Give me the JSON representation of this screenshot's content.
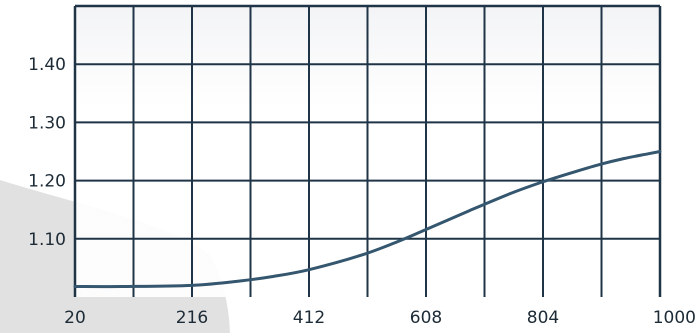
{
  "chart_data": {
    "type": "line",
    "title": "",
    "xlabel": "",
    "ylabel": "",
    "xlim": [
      20,
      1000
    ],
    "ylim": [
      1.0,
      1.5
    ],
    "x_ticks": [
      20,
      216,
      412,
      608,
      804,
      1000
    ],
    "x_tick_labels": [
      "20",
      "216",
      "412",
      "608",
      "804",
      "1000"
    ],
    "y_ticks": [
      1.1,
      1.2,
      1.3,
      1.4
    ],
    "y_tick_labels": [
      "1.10",
      "1.20",
      "1.30",
      "1.40"
    ],
    "grid": true,
    "legend": "none",
    "colors": {
      "line": "#34566e",
      "grid": "#1f3547",
      "plot_bg_top": "#f2f3f5",
      "plot_bg_bottom": "#ffffff"
    },
    "series": [
      {
        "x": [
          20,
          100,
          216,
          300,
          350,
          412,
          500,
          560,
          608,
          680,
          750,
          804,
          860,
          900,
          940,
          980,
          1000
        ],
        "values": [
          1.018,
          1.018,
          1.02,
          1.028,
          1.035,
          1.047,
          1.072,
          1.095,
          1.116,
          1.148,
          1.178,
          1.198,
          1.216,
          1.228,
          1.238,
          1.246,
          1.25
        ]
      }
    ]
  }
}
